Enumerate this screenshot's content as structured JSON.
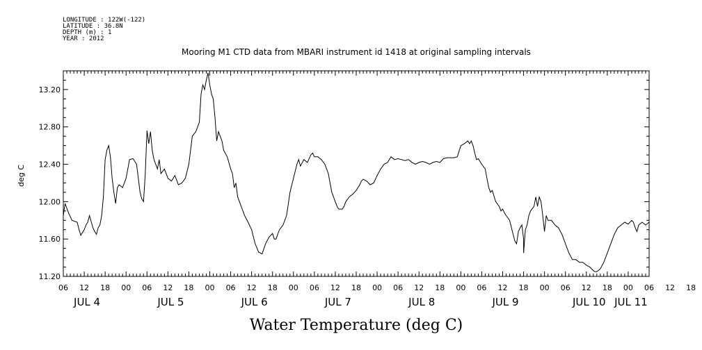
{
  "header": {
    "longitude": "LONGITUDE : 122W(-122)",
    "latitude": "LATITUDE : 36.8N",
    "depth": "DEPTH (m) : 1",
    "year": "YEAR : 2012"
  },
  "chart_data": {
    "type": "line",
    "title": "Mooring M1 CTD data from MBARI instrument id 1418 at original sampling intervals",
    "xlabel": "Water Temperature (deg C)",
    "ylabel": "deg C",
    "ylim": [
      11.2,
      13.4
    ],
    "xlim": [
      6,
      174
    ],
    "x_units": "hours since 00:00 JUL 4",
    "yticks": [
      "11.20",
      "11.60",
      "12.00",
      "12.40",
      "12.80",
      "13.20"
    ],
    "xtick_labels": [
      "06",
      "12",
      "18",
      "00",
      "06",
      "12",
      "18",
      "00",
      "06",
      "12",
      "18",
      "00",
      "06",
      "12",
      "18",
      "00",
      "06",
      "12",
      "18",
      "00",
      "06",
      "12",
      "18",
      "00",
      "06",
      "12",
      "18",
      "00",
      "06",
      "12",
      "18",
      "00"
    ],
    "day_labels": [
      "JUL  4",
      "JUL  5",
      "JUL  6",
      "JUL  7",
      "JUL  8",
      "JUL  9",
      "JUL 10",
      "JUL 11"
    ],
    "grid": false,
    "series": [
      {
        "points": [
          [
            6,
            11.85
          ],
          [
            6.5,
            11.98
          ],
          [
            7.5,
            11.88
          ],
          [
            8.5,
            11.8
          ],
          [
            10,
            11.78
          ],
          [
            10.5,
            11.7
          ],
          [
            11,
            11.64
          ],
          [
            12,
            11.7
          ],
          [
            12.5,
            11.75
          ],
          [
            13,
            11.78
          ],
          [
            13.5,
            11.85
          ],
          [
            14.5,
            11.72
          ],
          [
            15,
            11.68
          ],
          [
            15.5,
            11.65
          ],
          [
            16,
            11.72
          ],
          [
            16.5,
            11.75
          ],
          [
            17,
            11.85
          ],
          [
            17.5,
            12.05
          ],
          [
            18,
            12.45
          ],
          [
            18.5,
            12.55
          ],
          [
            19,
            12.6
          ],
          [
            19.5,
            12.48
          ],
          [
            20,
            12.25
          ],
          [
            20.5,
            12.1
          ],
          [
            21,
            11.98
          ],
          [
            21.5,
            12.15
          ],
          [
            22,
            12.18
          ],
          [
            23,
            12.15
          ],
          [
            24,
            12.25
          ],
          [
            24.5,
            12.35
          ],
          [
            25,
            12.45
          ],
          [
            26,
            12.46
          ],
          [
            27,
            12.4
          ],
          [
            27.5,
            12.25
          ],
          [
            28,
            12.1
          ],
          [
            28.5,
            12.03
          ],
          [
            29,
            12.0
          ],
          [
            29.5,
            12.3
          ],
          [
            30,
            12.76
          ],
          [
            30.5,
            12.62
          ],
          [
            31,
            12.75
          ],
          [
            31.5,
            12.55
          ],
          [
            32,
            12.45
          ],
          [
            32.5,
            12.4
          ],
          [
            33,
            12.35
          ],
          [
            33.5,
            12.45
          ],
          [
            34,
            12.3
          ],
          [
            35,
            12.35
          ],
          [
            36,
            12.25
          ],
          [
            37,
            12.22
          ],
          [
            38,
            12.28
          ],
          [
            39,
            12.18
          ],
          [
            40,
            12.2
          ],
          [
            41,
            12.25
          ],
          [
            42,
            12.4
          ],
          [
            42.5,
            12.55
          ],
          [
            43,
            12.7
          ],
          [
            44,
            12.75
          ],
          [
            45,
            12.85
          ],
          [
            45.5,
            13.15
          ],
          [
            46,
            13.25
          ],
          [
            46.5,
            13.2
          ],
          [
            47,
            13.3
          ],
          [
            47.5,
            13.38
          ],
          [
            48,
            13.25
          ],
          [
            48.5,
            13.15
          ],
          [
            49,
            13.1
          ],
          [
            49.5,
            12.9
          ],
          [
            50,
            12.65
          ],
          [
            50.5,
            12.75
          ],
          [
            51,
            12.7
          ],
          [
            51.5,
            12.65
          ],
          [
            52,
            12.55
          ],
          [
            53,
            12.48
          ],
          [
            54,
            12.35
          ],
          [
            54.5,
            12.3
          ],
          [
            55,
            12.15
          ],
          [
            55.5,
            12.2
          ],
          [
            56,
            12.05
          ],
          [
            57,
            11.95
          ],
          [
            58,
            11.85
          ],
          [
            59,
            11.78
          ],
          [
            60,
            11.7
          ],
          [
            61,
            11.55
          ],
          [
            62,
            11.46
          ],
          [
            63,
            11.44
          ],
          [
            64,
            11.55
          ],
          [
            65,
            11.62
          ],
          [
            66,
            11.66
          ],
          [
            66.5,
            11.6
          ],
          [
            67,
            11.6
          ],
          [
            68,
            11.7
          ],
          [
            69,
            11.75
          ],
          [
            70,
            11.85
          ],
          [
            70.5,
            11.97
          ],
          [
            71,
            12.1
          ],
          [
            72,
            12.25
          ],
          [
            73,
            12.4
          ],
          [
            73.5,
            12.45
          ],
          [
            74,
            12.38
          ],
          [
            75,
            12.45
          ],
          [
            76,
            12.42
          ],
          [
            77,
            12.5
          ],
          [
            77.5,
            12.52
          ],
          [
            78,
            12.48
          ],
          [
            79,
            12.48
          ],
          [
            80,
            12.45
          ],
          [
            81,
            12.4
          ],
          [
            82,
            12.3
          ],
          [
            82.5,
            12.2
          ],
          [
            83,
            12.1
          ],
          [
            84,
            12.0
          ],
          [
            84.5,
            11.95
          ],
          [
            85,
            11.92
          ],
          [
            86,
            11.92
          ],
          [
            86.5,
            11.95
          ],
          [
            87,
            12.0
          ],
          [
            88,
            12.05
          ],
          [
            89,
            12.08
          ],
          [
            90,
            12.12
          ],
          [
            91,
            12.18
          ],
          [
            91.5,
            12.22
          ],
          [
            92,
            12.24
          ],
          [
            93,
            12.22
          ],
          [
            93.5,
            12.2
          ],
          [
            94,
            12.18
          ],
          [
            95,
            12.2
          ],
          [
            96,
            12.28
          ],
          [
            97,
            12.35
          ],
          [
            98,
            12.4
          ],
          [
            99,
            12.42
          ],
          [
            100,
            12.48
          ],
          [
            101,
            12.45
          ],
          [
            102,
            12.46
          ],
          [
            103,
            12.45
          ],
          [
            104,
            12.44
          ],
          [
            105,
            12.45
          ],
          [
            106,
            12.42
          ],
          [
            107,
            12.4
          ],
          [
            108,
            12.42
          ],
          [
            109,
            12.43
          ],
          [
            110,
            12.42
          ],
          [
            111,
            12.4
          ],
          [
            112,
            12.42
          ],
          [
            113,
            12.43
          ],
          [
            114,
            12.42
          ],
          [
            115,
            12.46
          ],
          [
            116,
            12.47
          ],
          [
            118,
            12.47
          ],
          [
            119,
            12.48
          ],
          [
            120,
            12.6
          ],
          [
            121,
            12.62
          ],
          [
            122,
            12.65
          ],
          [
            122.5,
            12.62
          ],
          [
            123,
            12.65
          ],
          [
            123.5,
            12.6
          ],
          [
            124,
            12.52
          ],
          [
            124.5,
            12.45
          ],
          [
            125,
            12.46
          ],
          [
            126,
            12.4
          ],
          [
            127,
            12.35
          ],
          [
            127.5,
            12.25
          ],
          [
            128,
            12.15
          ],
          [
            128.5,
            12.1
          ],
          [
            129,
            12.12
          ],
          [
            130,
            12.0
          ],
          [
            131,
            11.95
          ],
          [
            131.5,
            11.9
          ],
          [
            132,
            11.92
          ],
          [
            132.5,
            11.88
          ],
          [
            133,
            11.85
          ],
          [
            134,
            11.8
          ],
          [
            135,
            11.65
          ],
          [
            135.5,
            11.58
          ],
          [
            136,
            11.55
          ],
          [
            136.5,
            11.68
          ],
          [
            137,
            11.72
          ],
          [
            137.5,
            11.75
          ],
          [
            138,
            11.6
          ],
          [
            138,
            11.45
          ],
          [
            138.5,
            11.7
          ],
          [
            139,
            11.75
          ],
          [
            139.5,
            11.85
          ],
          [
            140,
            11.9
          ],
          [
            141,
            11.95
          ],
          [
            141.5,
            12.05
          ],
          [
            142,
            11.95
          ],
          [
            142.5,
            12.05
          ],
          [
            143,
            12.0
          ],
          [
            143.5,
            11.85
          ],
          [
            144,
            11.68
          ],
          [
            144.5,
            11.85
          ],
          [
            145,
            11.8
          ],
          [
            146,
            11.8
          ],
          [
            147,
            11.75
          ],
          [
            148,
            11.72
          ],
          [
            149,
            11.65
          ],
          [
            150,
            11.55
          ],
          [
            151,
            11.45
          ],
          [
            152,
            11.38
          ],
          [
            153,
            11.38
          ],
          [
            154,
            11.35
          ],
          [
            155,
            11.35
          ],
          [
            156,
            11.32
          ],
          [
            157,
            11.3
          ],
          [
            158,
            11.26
          ],
          [
            158.5,
            11.25
          ],
          [
            159,
            11.25
          ],
          [
            160,
            11.28
          ],
          [
            161,
            11.35
          ],
          [
            162,
            11.45
          ],
          [
            163,
            11.55
          ],
          [
            164,
            11.65
          ],
          [
            165,
            11.72
          ],
          [
            166,
            11.75
          ],
          [
            167,
            11.78
          ],
          [
            168,
            11.76
          ],
          [
            169,
            11.8
          ],
          [
            169.5,
            11.78
          ],
          [
            170,
            11.72
          ],
          [
            170.5,
            11.68
          ],
          [
            171,
            11.75
          ],
          [
            172,
            11.78
          ],
          [
            173,
            11.75
          ],
          [
            174,
            11.78
          ]
        ]
      }
    ]
  }
}
